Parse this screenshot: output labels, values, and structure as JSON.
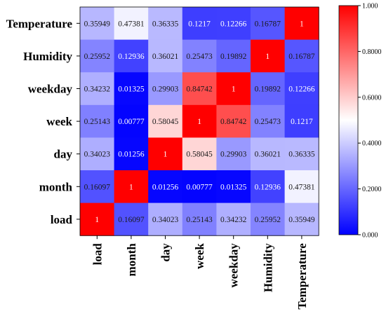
{
  "chart_data": {
    "type": "heatmap",
    "row_labels": [
      "Temperature",
      "Humidity",
      "weekday",
      "week",
      "day",
      "month",
      "load"
    ],
    "col_labels": [
      "load",
      "month",
      "day",
      "week",
      "weekday",
      "Humidity",
      "Temperature"
    ],
    "value_labels": [
      [
        "0.35949",
        "0.47381",
        "0.36335",
        "0.1217",
        "0.12266",
        "0.16787",
        "1"
      ],
      [
        "0.25952",
        "0.12936",
        "0.36021",
        "0.25473",
        "0.19892",
        "1",
        "0.16787"
      ],
      [
        "0.34232",
        "0.01325",
        "0.29903",
        "0.84742",
        "1",
        "0.19892",
        "0.12266"
      ],
      [
        "0.25143",
        "0.00777",
        "0.58045",
        "1",
        "0.84742",
        "0.25473",
        "0.1217"
      ],
      [
        "0.34023",
        "0.01256",
        "1",
        "0.58045",
        "0.29903",
        "0.36021",
        "0.36335"
      ],
      [
        "0.16097",
        "1",
        "0.01256",
        "0.00777",
        "0.01325",
        "0.12936",
        "0.47381"
      ],
      [
        "1",
        "0.16097",
        "0.34023",
        "0.25143",
        "0.34232",
        "0.25952",
        "0.35949"
      ]
    ],
    "values": [
      [
        0.35949,
        0.47381,
        0.36335,
        0.1217,
        0.12266,
        0.16787,
        1
      ],
      [
        0.25952,
        0.12936,
        0.36021,
        0.25473,
        0.19892,
        1,
        0.16787
      ],
      [
        0.34232,
        0.01325,
        0.29903,
        0.84742,
        1,
        0.19892,
        0.12266
      ],
      [
        0.25143,
        0.00777,
        0.58045,
        1,
        0.84742,
        0.25473,
        0.1217
      ],
      [
        0.34023,
        0.01256,
        1,
        0.58045,
        0.29903,
        0.36021,
        0.36335
      ],
      [
        0.16097,
        1,
        0.01256,
        0.00777,
        0.01325,
        0.12936,
        0.47381
      ],
      [
        1,
        0.16097,
        0.34023,
        0.25143,
        0.34232,
        0.25952,
        0.35949
      ]
    ],
    "colorbar": {
      "range": [
        0,
        1
      ],
      "ticks": [
        0,
        0.2,
        0.4,
        0.6,
        0.8,
        1.0
      ],
      "tick_labels": [
        "0.000",
        "0.2000",
        "0.4000",
        "0.6000",
        "0.8000",
        "1.000"
      ],
      "colormap": "bwr",
      "colors": {
        "low": "#0000ff",
        "mid": "#ffffff",
        "high": "#ff0000"
      }
    }
  }
}
